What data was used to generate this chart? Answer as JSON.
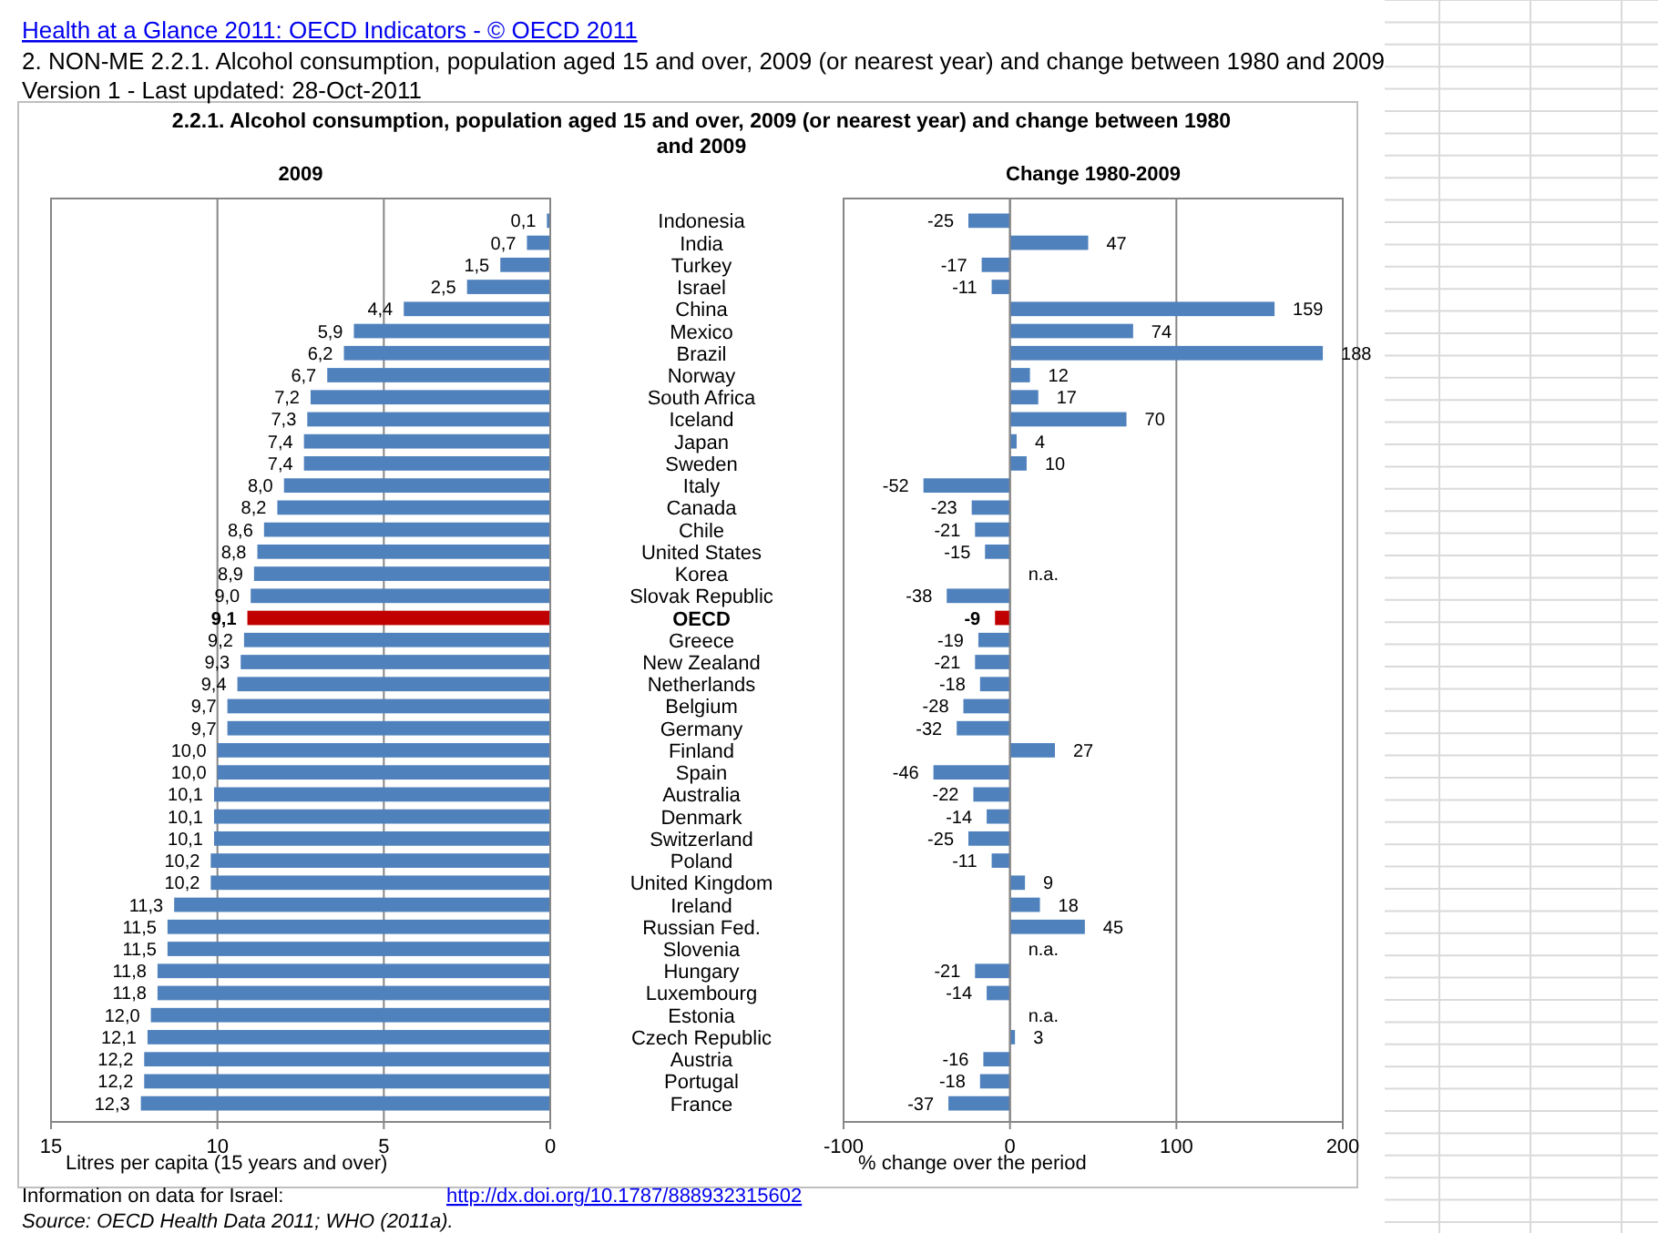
{
  "chart_data": [
    {
      "type": "bar",
      "orientation": "horizontal",
      "title": "2009",
      "xlabel": "Litres per capita (15 years and over)",
      "categories": [
        "Indonesia",
        "India",
        "Turkey",
        "Israel",
        "China",
        "Mexico",
        "Brazil",
        "Norway",
        "South Africa",
        "Iceland",
        "Japan",
        "Sweden",
        "Italy",
        "Canada",
        "Chile",
        "United States",
        "Korea",
        "Slovak Republic",
        "OECD",
        "Greece",
        "New Zealand",
        "Netherlands",
        "Belgium",
        "Germany",
        "Finland",
        "Spain",
        "Australia",
        "Denmark",
        "Switzerland",
        "Poland",
        "United Kingdom",
        "Ireland",
        "Russian Fed.",
        "Slovenia",
        "Hungary",
        "Luxembourg",
        "Estonia",
        "Czech Republic",
        "Austria",
        "Portugal",
        "France"
      ],
      "values": [
        0.1,
        0.7,
        1.5,
        2.5,
        4.4,
        5.9,
        6.2,
        6.7,
        7.2,
        7.3,
        7.4,
        7.4,
        8.0,
        8.2,
        8.6,
        8.8,
        8.9,
        9.0,
        9.1,
        9.2,
        9.3,
        9.4,
        9.7,
        9.7,
        10.0,
        10.0,
        10.1,
        10.1,
        10.1,
        10.2,
        10.2,
        11.3,
        11.5,
        11.5,
        11.8,
        11.8,
        12.0,
        12.1,
        12.2,
        12.2,
        12.3
      ],
      "value_labels": [
        "0,1",
        "0,7",
        "1,5",
        "2,5",
        "4,4",
        "5,9",
        "6,2",
        "6,7",
        "7,2",
        "7,3",
        "7,4",
        "7,4",
        "8,0",
        "8,2",
        "8,6",
        "8,8",
        "8,9",
        "9,0",
        "9,1",
        "9,2",
        "9,3",
        "9,4",
        "9,7",
        "9,7",
        "10,0",
        "10,0",
        "10,1",
        "10,1",
        "10,1",
        "10,2",
        "10,2",
        "11,3",
        "11,5",
        "11,5",
        "11,8",
        "11,8",
        "12,0",
        "12,1",
        "12,2",
        "12,2",
        "12,3"
      ],
      "colors": [
        "#4f81bd",
        "#4f81bd",
        "#4f81bd",
        "#4f81bd",
        "#4f81bd",
        "#4f81bd",
        "#4f81bd",
        "#4f81bd",
        "#4f81bd",
        "#4f81bd",
        "#4f81bd",
        "#4f81bd",
        "#4f81bd",
        "#4f81bd",
        "#4f81bd",
        "#4f81bd",
        "#4f81bd",
        "#4f81bd",
        "#c00000",
        "#4f81bd",
        "#4f81bd",
        "#4f81bd",
        "#4f81bd",
        "#4f81bd",
        "#4f81bd",
        "#4f81bd",
        "#4f81bd",
        "#4f81bd",
        "#4f81bd",
        "#4f81bd",
        "#4f81bd",
        "#4f81bd",
        "#4f81bd",
        "#4f81bd",
        "#4f81bd",
        "#4f81bd",
        "#4f81bd",
        "#4f81bd",
        "#4f81bd",
        "#4f81bd",
        "#4f81bd"
      ],
      "xlim": [
        15,
        0
      ],
      "xticks": [
        15,
        10,
        5,
        0
      ],
      "grid": "x",
      "annotations": [
        "Health at a Glance 2011: OECD Indicators - © OECD 2011",
        "2. NON-ME 2.2.1. Alcohol consumption, population aged 15 and over, 2009 (or nearest year) and change between 1980 and 2009",
        "Version 1 - Last updated: 28-Oct-2011",
        "2.2.1. Alcohol consumption, population aged 15 and over, 2009 (or nearest year) and change between 1980 and 2009",
        "Information on data for Israel:",
        "http://dx.doi.org/10.1787/888932315602",
        "Source:  OECD Health Data 2011; WHO (2011a)."
      ]
    },
    {
      "type": "bar",
      "orientation": "horizontal",
      "title": "Change 1980-2009",
      "xlabel": "% change over  the period",
      "categories": [
        null,
        null,
        null,
        null,
        null,
        null,
        null,
        null,
        null,
        null,
        null,
        null,
        null,
        null,
        null,
        null,
        null,
        null,
        null,
        null,
        null,
        null,
        null,
        null,
        null,
        null,
        null,
        null,
        null,
        null,
        null,
        null,
        null,
        null,
        null,
        null,
        null,
        null,
        null,
        null,
        null
      ],
      "values": [
        -25,
        47,
        -17,
        -11,
        159,
        74,
        188,
        12,
        17,
        70,
        4,
        10,
        -52,
        -23,
        -21,
        -15,
        null,
        -38,
        -9,
        -19,
        -21,
        -18,
        -28,
        -32,
        27,
        -46,
        -22,
        -14,
        -25,
        -11,
        9,
        18,
        45,
        null,
        -21,
        -14,
        null,
        3,
        -16,
        -18,
        -37
      ],
      "value_labels": [
        "-25",
        "47",
        "-17",
        "-11",
        "159",
        "74",
        "188",
        "12",
        "17",
        "70",
        "4",
        "10",
        "-52",
        "-23",
        "-21",
        "-15",
        "n.a.",
        "-38",
        "-9",
        "-19",
        "-21",
        "-18",
        "-28",
        "-32",
        "27",
        "-46",
        "-22",
        "-14",
        "-25",
        "-11",
        "9",
        "18",
        "45",
        "n.a.",
        "-21",
        "-14",
        "n.a.",
        "3",
        "-16",
        "-18",
        "-37"
      ],
      "colors": [
        "#4f81bd",
        "#4f81bd",
        "#4f81bd",
        "#4f81bd",
        "#4f81bd",
        "#4f81bd",
        "#4f81bd",
        "#4f81bd",
        "#4f81bd",
        "#4f81bd",
        "#4f81bd",
        "#4f81bd",
        "#4f81bd",
        "#4f81bd",
        "#4f81bd",
        "#4f81bd",
        "#4f81bd",
        "#4f81bd",
        "#c00000",
        "#4f81bd",
        "#4f81bd",
        "#4f81bd",
        "#4f81bd",
        "#4f81bd",
        "#4f81bd",
        "#4f81bd",
        "#4f81bd",
        "#4f81bd",
        "#4f81bd",
        "#4f81bd",
        "#4f81bd",
        "#4f81bd",
        "#4f81bd",
        "#4f81bd",
        "#4f81bd",
        "#4f81bd",
        "#4f81bd",
        "#4f81bd",
        "#4f81bd",
        "#4f81bd",
        "#4f81bd"
      ],
      "xlim": [
        -100,
        200
      ],
      "xticks": [
        -100,
        0,
        100,
        200
      ],
      "grid": "x"
    }
  ]
}
